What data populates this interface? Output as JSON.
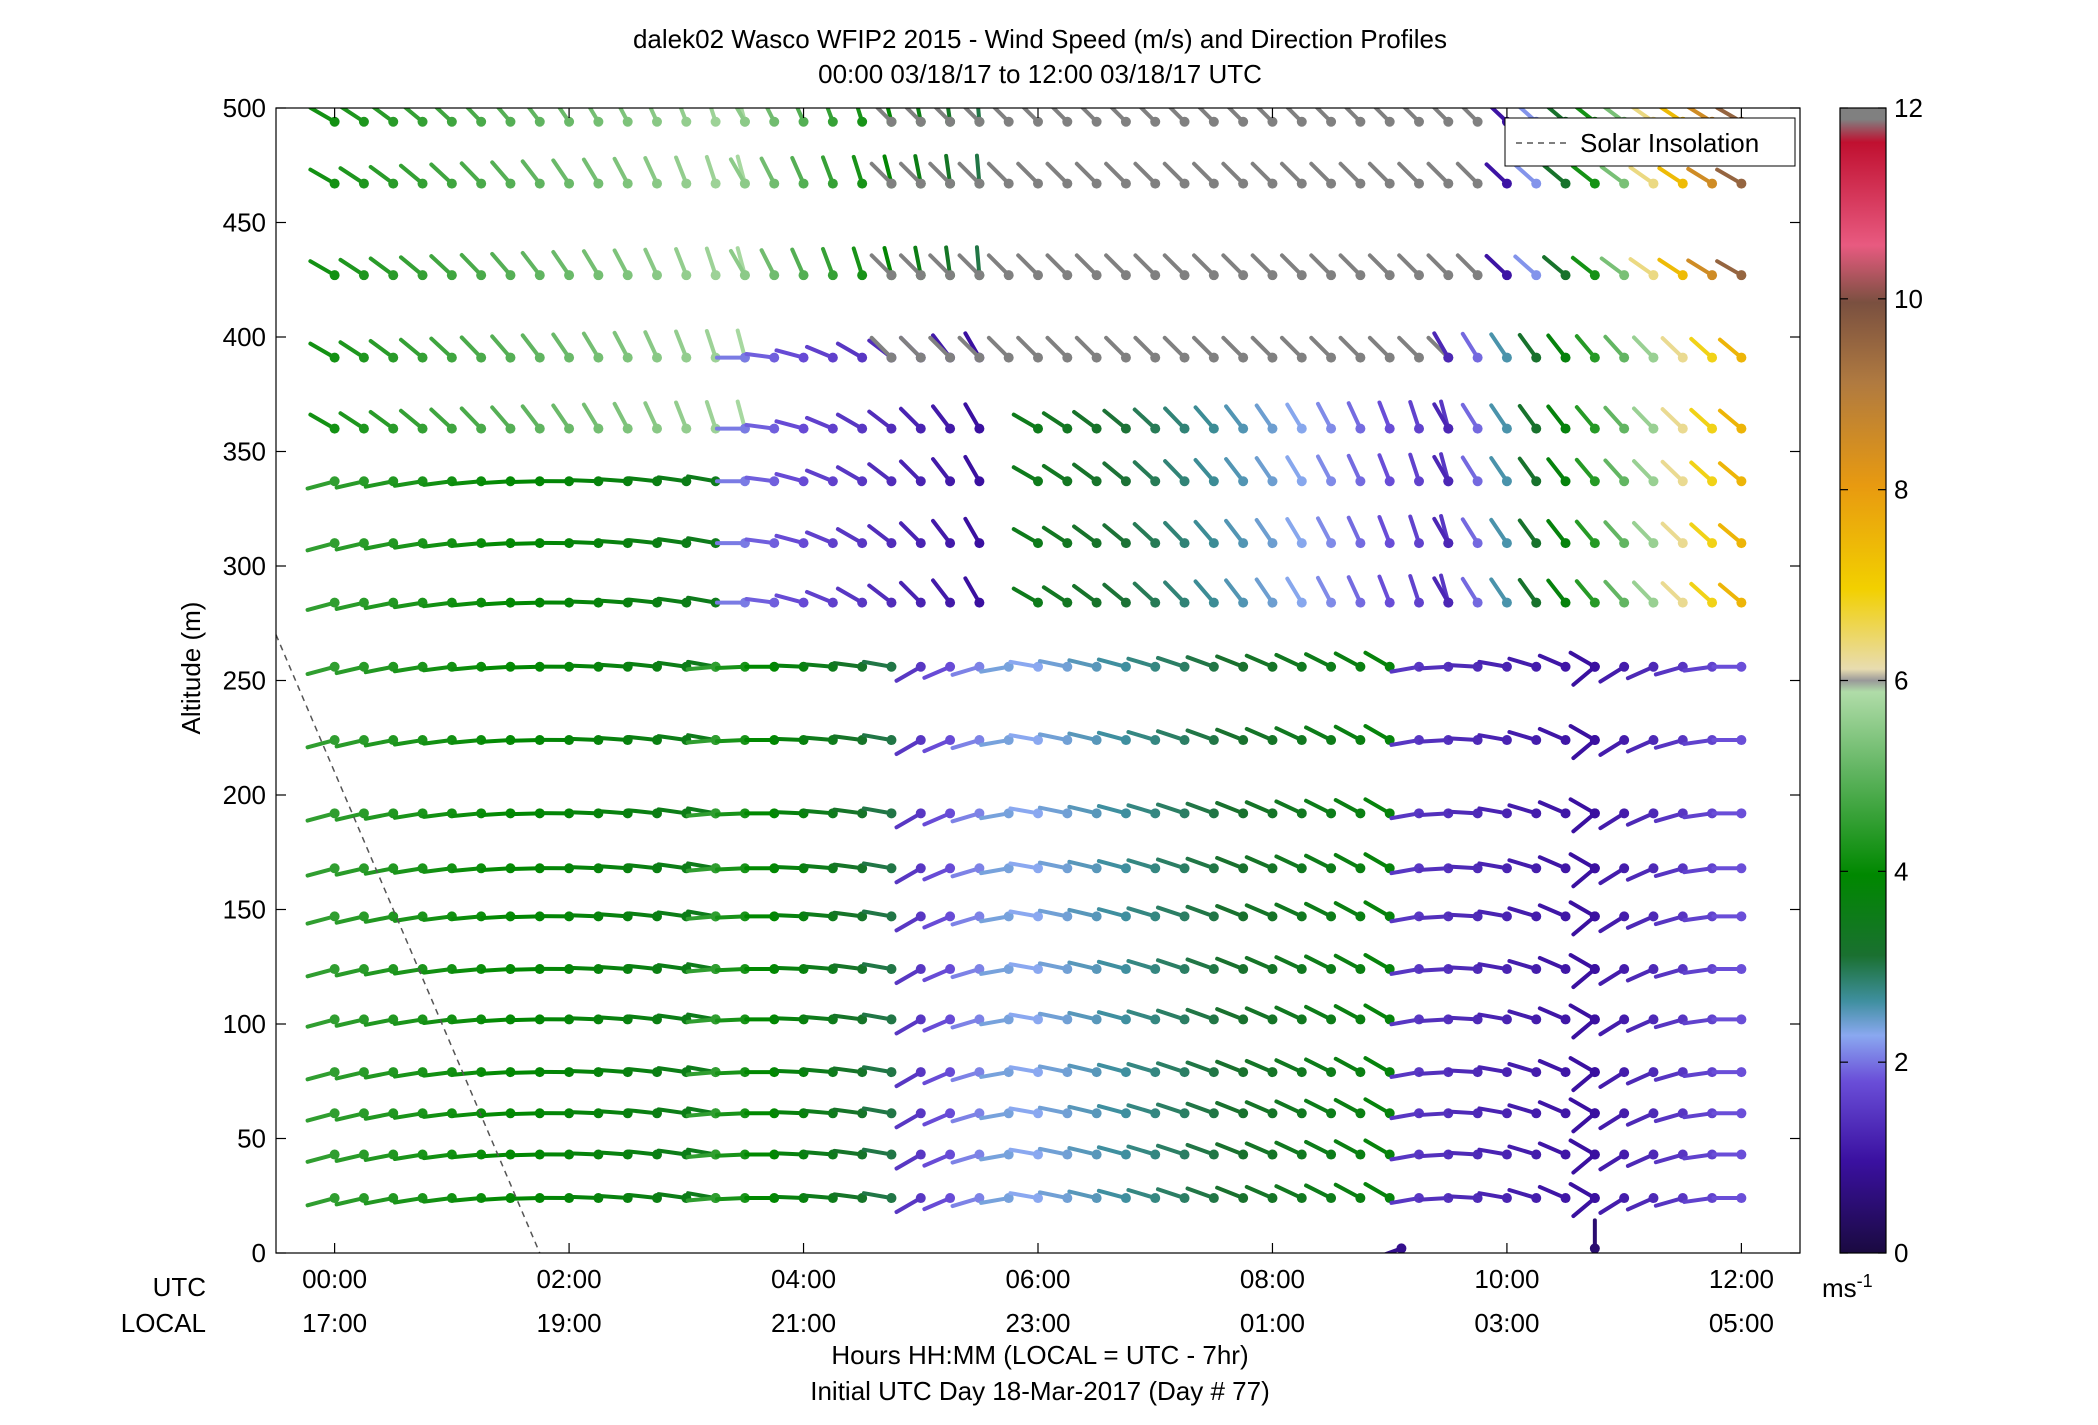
{
  "chart_data": {
    "type": "wind-barb-profile",
    "title": "dalek02 Wasco WFIP2 2015 - Wind Speed (m/s) and Direction Profiles",
    "subtitle": "00:00 03/18/17 to 12:00 03/18/17  UTC",
    "ylabel": "Altitude (m)",
    "xlabel": "Hours HH:MM  (LOCAL = UTC - 7hr)",
    "xlabel2": "Initial UTC Day 18-Mar-2017 (Day # 77)",
    "row_label_utc": "UTC",
    "row_label_local": "LOCAL",
    "xlim": [
      -0.5,
      12.5
    ],
    "ylim": [
      0,
      500
    ],
    "x_ticks_utc": [
      "00:00",
      "02:00",
      "04:00",
      "06:00",
      "08:00",
      "10:00",
      "12:00"
    ],
    "x_ticks_local": [
      "17:00",
      "19:00",
      "21:00",
      "23:00",
      "01:00",
      "03:00",
      "05:00"
    ],
    "y_ticks": [
      0,
      50,
      100,
      150,
      200,
      250,
      300,
      350,
      400,
      450,
      500
    ],
    "colorbar": {
      "min": 0,
      "max": 12,
      "ticks": [
        0,
        2,
        4,
        6,
        8,
        10,
        12
      ],
      "unit": "ms",
      "unit_exp": "-1"
    },
    "legend": {
      "label": "Solar Insolation",
      "position": "top-right"
    },
    "solar_insolation_line": [
      [
        -0.5,
        270
      ],
      [
        1.75,
        0
      ]
    ],
    "altitudes": [
      24,
      43,
      61,
      79,
      102,
      124,
      147,
      168,
      192,
      224,
      256,
      284,
      310,
      337,
      360,
      391,
      427,
      467,
      494
    ],
    "time_step_hours": 0.25,
    "segments": [
      {
        "h0": 0,
        "h1": 14,
        "t0": 0,
        "t1": 3.25,
        "speed": [
          4.5,
          3.5
        ],
        "dir": [
          255,
          280
        ]
      },
      {
        "h0": 14,
        "h1": 19,
        "t0": 0,
        "t1": 3.5,
        "speed": [
          4.2,
          5.8
        ],
        "dir": [
          300,
          345
        ]
      },
      {
        "h0": 0,
        "h1": 11,
        "t0": 3.25,
        "t1": 4.75,
        "speed": [
          4.5,
          3.0
        ],
        "dir": [
          265,
          280
        ]
      },
      {
        "h0": 11,
        "h1": 16,
        "t0": 3.5,
        "t1": 5.5,
        "speed": [
          2.0,
          1.0
        ],
        "dir": [
          270,
          330
        ]
      },
      {
        "h0": 16,
        "h1": 19,
        "t0": 3.5,
        "t1": 5.5,
        "speed": [
          5.5,
          3.0
        ],
        "dir": [
          330,
          355
        ]
      },
      {
        "h0": 0,
        "h1": 11,
        "t0": 5.0,
        "t1": 5.75,
        "speed": [
          1.5,
          2.3
        ],
        "dir": [
          240,
          260
        ]
      },
      {
        "h0": 0,
        "h1": 11,
        "t0": 6.0,
        "t1": 9.0,
        "speed": [
          2.2,
          3.8
        ],
        "dir": [
          280,
          300
        ]
      },
      {
        "h0": 11,
        "h1": 15,
        "t0": 6.0,
        "t1": 9.5,
        "speed": [
          3.5,
          1.5
        ],
        "dir": [
          300,
          345
        ]
      },
      {
        "h0": 15,
        "h1": 19,
        "t0": 4.75,
        "t1": 9.5,
        "speed": [
          0,
          0
        ],
        "dir": [
          315,
          315
        ]
      },
      {
        "h0": 0,
        "h1": 11,
        "t0": 9.25,
        "t1": 10.75,
        "speed": [
          1.5,
          1.0
        ],
        "dir": [
          260,
          300
        ]
      },
      {
        "h0": 0,
        "h1": 11,
        "t0": 10.75,
        "t1": 12.0,
        "speed": [
          1.0,
          1.8
        ],
        "dir": [
          230,
          270
        ]
      },
      {
        "h0": 11,
        "h1": 16,
        "t0": 9.5,
        "t1": 12.0,
        "speed": [
          1.3,
          7.5
        ],
        "dir": [
          330,
          310
        ]
      },
      {
        "h0": 16,
        "h1": 19,
        "t0": 9.75,
        "t1": 12.0,
        "speed": [
          0,
          9.5
        ],
        "dir": [
          315,
          300
        ]
      }
    ],
    "bottom_points": [
      {
        "t": 9.1,
        "speed": 0.8,
        "dir": 250
      },
      {
        "t": 10.75,
        "speed": 0.5,
        "dir": 0
      }
    ]
  }
}
